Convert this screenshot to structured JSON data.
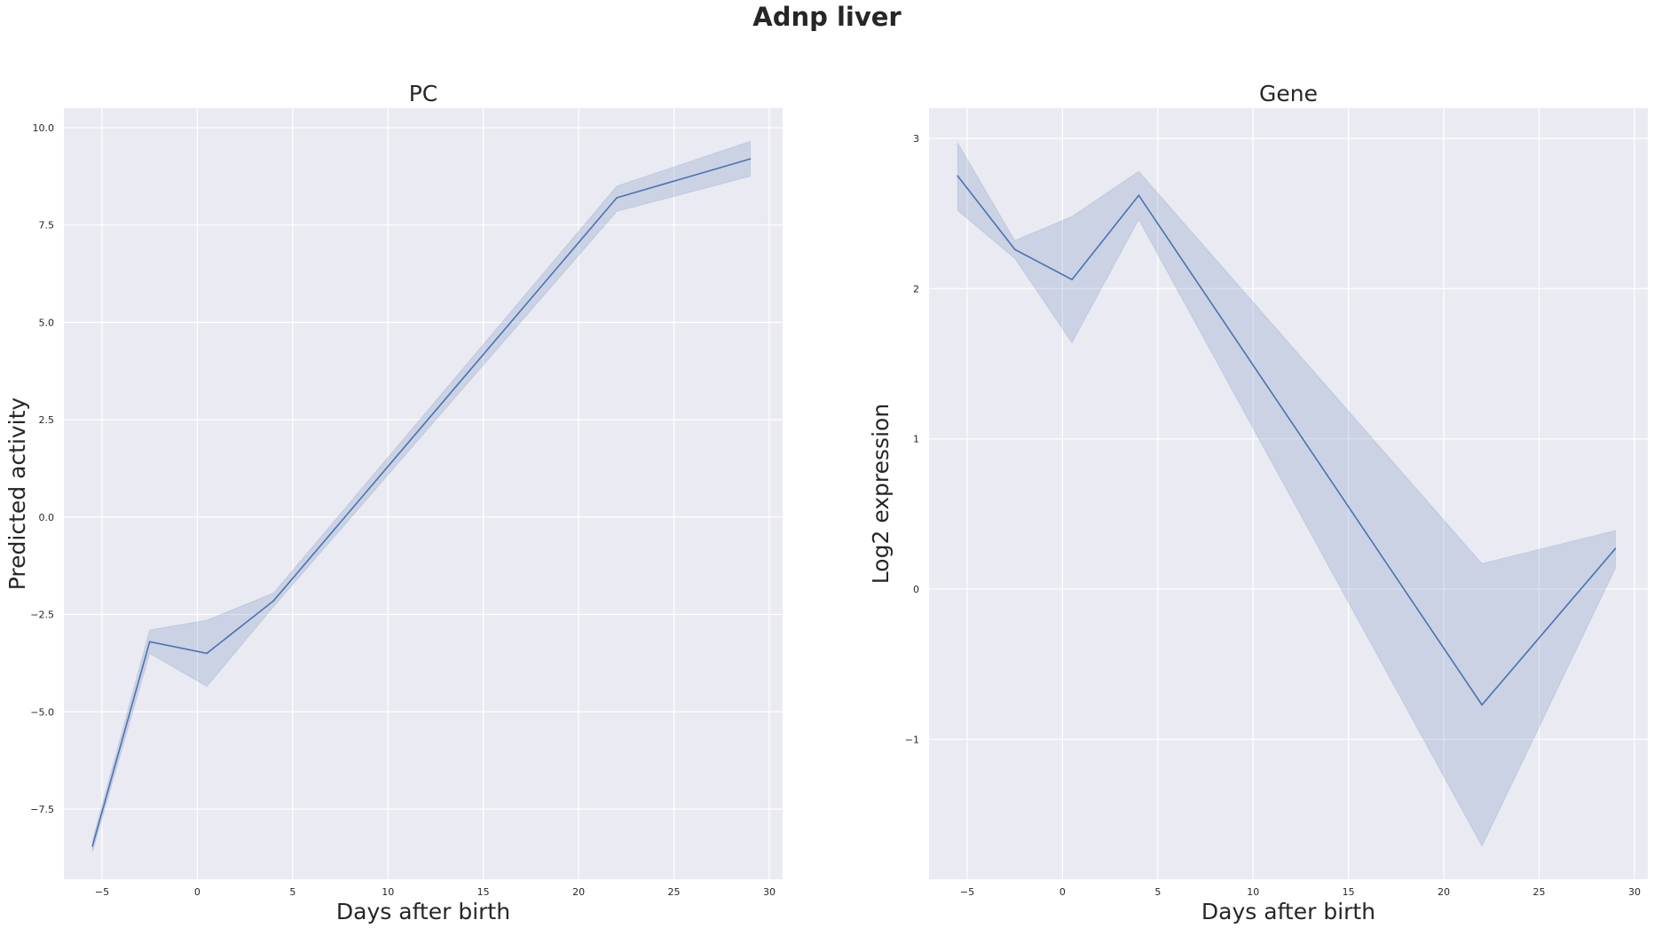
{
  "figure": {
    "suptitle": "Adnp liver"
  },
  "colors": {
    "plot_background": "#eaeaf2",
    "grid": "#ffffff",
    "line": "#4c72b0",
    "band": "#4c72b0"
  },
  "chart_data": [
    {
      "type": "line",
      "title": "PC",
      "xlabel": "Days after birth",
      "ylabel": "Predicted activity",
      "grid": true,
      "xlim": [
        -7,
        30.7
      ],
      "ylim": [
        -9.3,
        10.5
      ],
      "xticks": [
        -5,
        0,
        5,
        10,
        15,
        20,
        25,
        30
      ],
      "xtick_labels": [
        "−5",
        "0",
        "5",
        "10",
        "15",
        "20",
        "25",
        "30"
      ],
      "yticks": [
        -7.5,
        -5.0,
        -2.5,
        0.0,
        2.5,
        5.0,
        7.5,
        10.0
      ],
      "ytick_labels": [
        "−7.5",
        "−5.0",
        "−2.5",
        "0.0",
        "2.5",
        "5.0",
        "7.5",
        "10.0"
      ],
      "series": [
        {
          "x": [
            -5.5,
            -2.5,
            0.5,
            4,
            22,
            29
          ],
          "y": [
            -8.45,
            -3.2,
            -3.5,
            -2.15,
            8.2,
            9.2
          ],
          "ci_low": [
            -8.6,
            -3.5,
            -4.35,
            -2.3,
            7.85,
            8.75
          ],
          "ci_high": [
            -8.3,
            -2.9,
            -2.65,
            -1.95,
            8.5,
            9.65
          ]
        }
      ]
    },
    {
      "type": "line",
      "title": "Gene",
      "xlabel": "Days after birth",
      "ylabel": "Log2 expression",
      "grid": true,
      "xlim": [
        -7,
        30.7
      ],
      "ylim": [
        -1.93,
        3.2
      ],
      "xticks": [
        -5,
        0,
        5,
        10,
        15,
        20,
        25,
        30
      ],
      "xtick_labels": [
        "−5",
        "0",
        "5",
        "10",
        "15",
        "20",
        "25",
        "30"
      ],
      "yticks": [
        -1,
        0,
        1,
        2,
        3
      ],
      "ytick_labels": [
        "−1",
        "0",
        "1",
        "2",
        "3"
      ],
      "series": [
        {
          "x": [
            -5.5,
            -2.5,
            0.5,
            4,
            22,
            29
          ],
          "y": [
            2.75,
            2.26,
            2.06,
            2.62,
            -0.77,
            0.27
          ],
          "ci_low": [
            2.52,
            2.2,
            1.64,
            2.46,
            -1.71,
            0.14
          ],
          "ci_high": [
            2.97,
            2.32,
            2.48,
            2.78,
            0.17,
            0.39
          ]
        }
      ]
    }
  ]
}
